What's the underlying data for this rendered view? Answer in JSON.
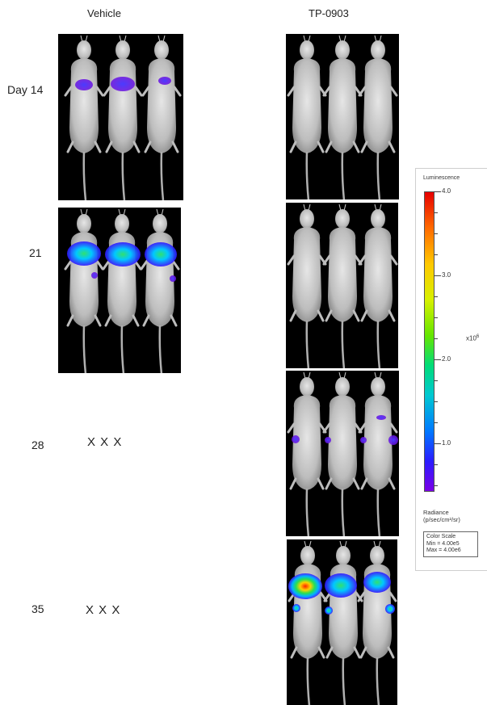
{
  "columns": {
    "vehicle": "Vehicle",
    "treatment": "TP-0903"
  },
  "rows": {
    "day14": "Day 14",
    "day21": "21",
    "day28": "28",
    "day35": "35"
  },
  "dead_marks": {
    "day28": "X  X  X",
    "day35": "X  X  X"
  },
  "color_scale": {
    "title": "Luminescence",
    "ticks": [
      "4.0",
      "3.0",
      "2.0",
      "1.0"
    ],
    "exponent_base": "x10",
    "exponent": "6",
    "units_line1": "Radiance",
    "units_line2": "(p/sec/cm²/sr)",
    "cs_label": "Color Scale",
    "cs_min": "Min = 4.00e5",
    "cs_max": "Max = 4.00e6",
    "gradient_top": "#e60000",
    "gradient_bottom": "#7a00e6"
  }
}
